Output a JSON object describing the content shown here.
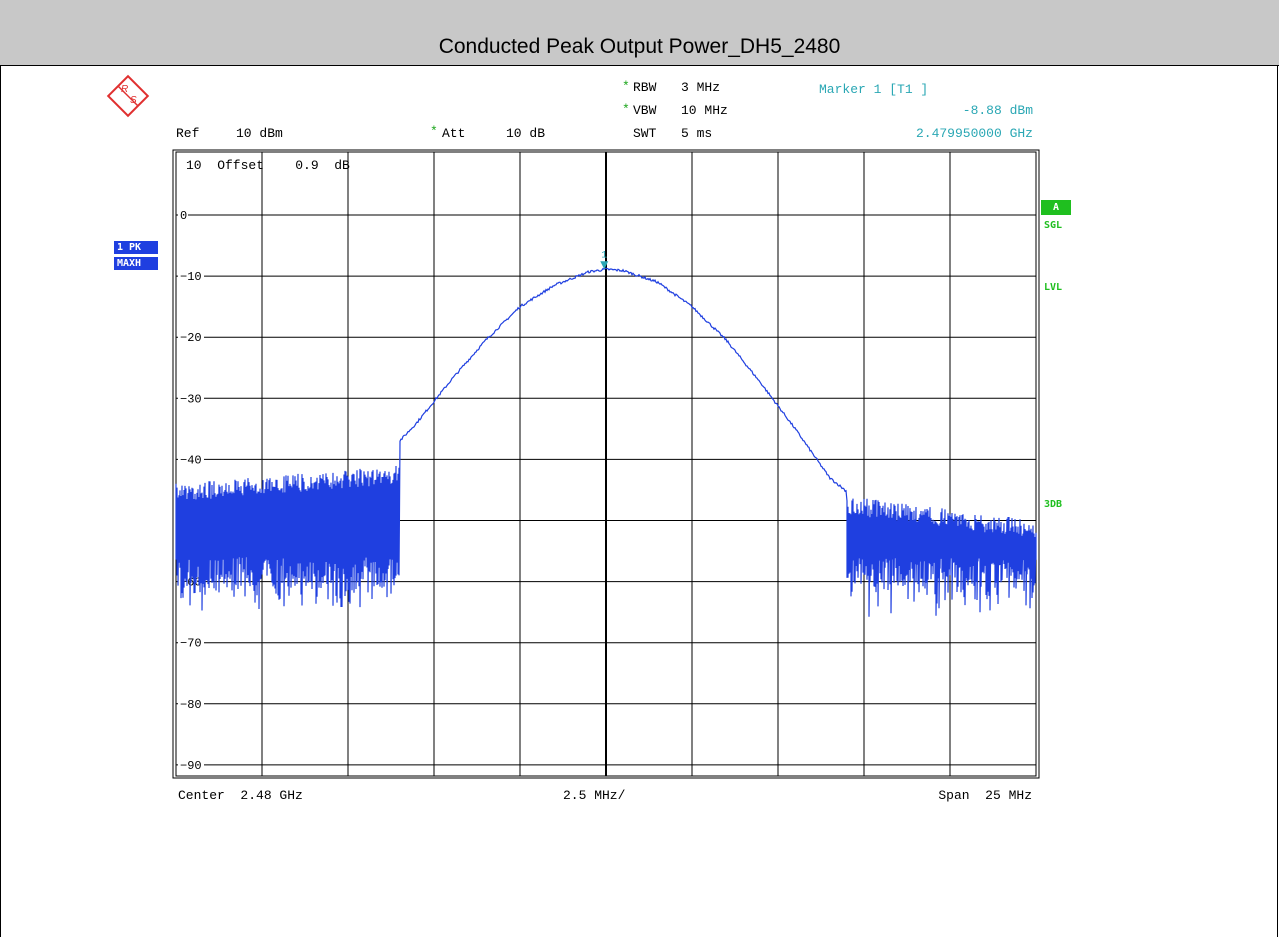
{
  "title": "Conducted Peak Output Power_DH5_2480",
  "header": {
    "ref": "Ref",
    "ref_value": "10 dBm",
    "att": "Att",
    "att_value": "10 dB",
    "rbw": "RBW",
    "rbw_value": "3 MHz",
    "vbw": "VBW",
    "vbw_value": "10 MHz",
    "swt": "SWT",
    "swt_value": "5 ms",
    "marker_label": "Marker 1 [T1 ]",
    "marker_level": "-8.88 dBm",
    "marker_freq": "2.479950000 GHz",
    "star": "*"
  },
  "plot": {
    "offset_label": "10  Offset    0.9  dB",
    "marker_number": "1"
  },
  "badges": {
    "trace": "1 PK",
    "mode": "MAXH"
  },
  "side": {
    "a": "A",
    "sgl": "SGL",
    "lvl": "LVL",
    "db3": "3DB"
  },
  "footer": {
    "center": "Center  2.48 GHz",
    "div": "2.5 MHz/",
    "span": "Span  25 MHz"
  },
  "colors": {
    "trace": "#1f3fe0",
    "marker": "#2aa7b4",
    "grid": "#000000",
    "title_bar": "#c8c8c8",
    "status_green": "#1fbf1f"
  },
  "chart_data": {
    "type": "line",
    "xlabel": "",
    "ylabel": "",
    "x_unit": "GHz",
    "y_unit": "dBm",
    "xlim": [
      2.4675,
      2.4925
    ],
    "ylim": [
      -90,
      0
    ],
    "yticks": [
      0,
      -10,
      -20,
      -30,
      -40,
      -50,
      -60,
      -70,
      -80,
      -90
    ],
    "series": [
      {
        "x": [
          2.4675,
          2.47,
          2.4715,
          2.4725,
          2.4735,
          2.4745,
          2.4755,
          2.4765,
          2.4775,
          2.4785,
          2.4795,
          2.48,
          2.4805,
          2.4815,
          2.4825,
          2.4835,
          2.4845,
          2.4855,
          2.4865,
          2.4875,
          2.4885,
          2.49,
          2.4925
        ],
        "y": [
          -47.0,
          -46.0,
          -45.0,
          -43.0,
          -40.0,
          -34.0,
          -27.0,
          -20.5,
          -15.0,
          -11.5,
          -9.3,
          -8.88,
          -9.1,
          -11.0,
          -15.0,
          -20.5,
          -27.5,
          -35.0,
          -43.0,
          -47.5,
          -48.0,
          -49.0,
          -50.0
        ]
      }
    ],
    "noise_floor": {
      "left": {
        "x_range": [
          2.4675,
          2.474
        ],
        "top": [
          -44,
          -41
        ],
        "bottom": -61
      },
      "right": {
        "x_range": [
          2.487,
          2.4925
        ],
        "top": [
          -46,
          -50
        ],
        "bottom": -61
      }
    },
    "marker": {
      "label": "1",
      "x": 2.47995,
      "y": -8.88
    }
  }
}
